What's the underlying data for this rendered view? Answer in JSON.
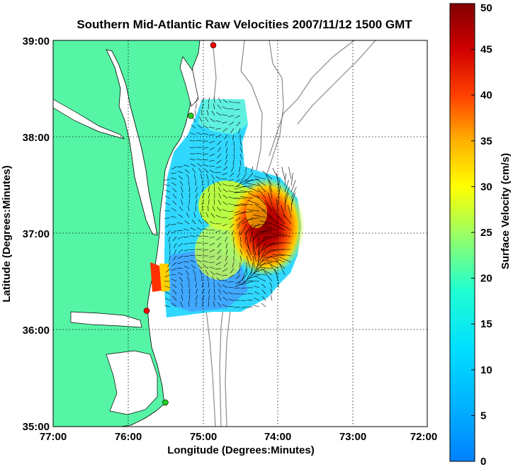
{
  "map": {
    "title": "Southern Mid-Atlantic Raw Velocities 2007/11/12 1500 GMT",
    "xlabel": "Longitude (Degrees:Minutes)",
    "ylabel": "Latitude (Degrees:Minutes)",
    "x_ticks": [
      "77:00",
      "76:00",
      "75:00",
      "74:00",
      "73:00",
      "72:00"
    ],
    "y_ticks": [
      "39:00",
      "38:00",
      "37:00",
      "36:00",
      "35:00"
    ],
    "lon_range": [
      -77,
      -72
    ],
    "lat_range": [
      35,
      39
    ],
    "land_color": "#55f5a5",
    "title_color": "#0000ff",
    "stations": [
      {
        "lon": -74.86,
        "lat": 38.95,
        "color": "#ff0000"
      },
      {
        "lon": -75.16,
        "lat": 38.22,
        "color": "#22cc22"
      },
      {
        "lon": -75.75,
        "lat": 36.2,
        "color": "#ff0000"
      },
      {
        "lon": -75.5,
        "lat": 35.25,
        "color": "#22cc22"
      }
    ]
  },
  "colorbar": {
    "label": "Surface Velocity (cm/s)",
    "ticks": [
      "0",
      "5",
      "10",
      "15",
      "20",
      "25",
      "30",
      "35",
      "40",
      "45",
      "50"
    ],
    "range": [
      0,
      50
    ],
    "colormap": "jet"
  }
}
